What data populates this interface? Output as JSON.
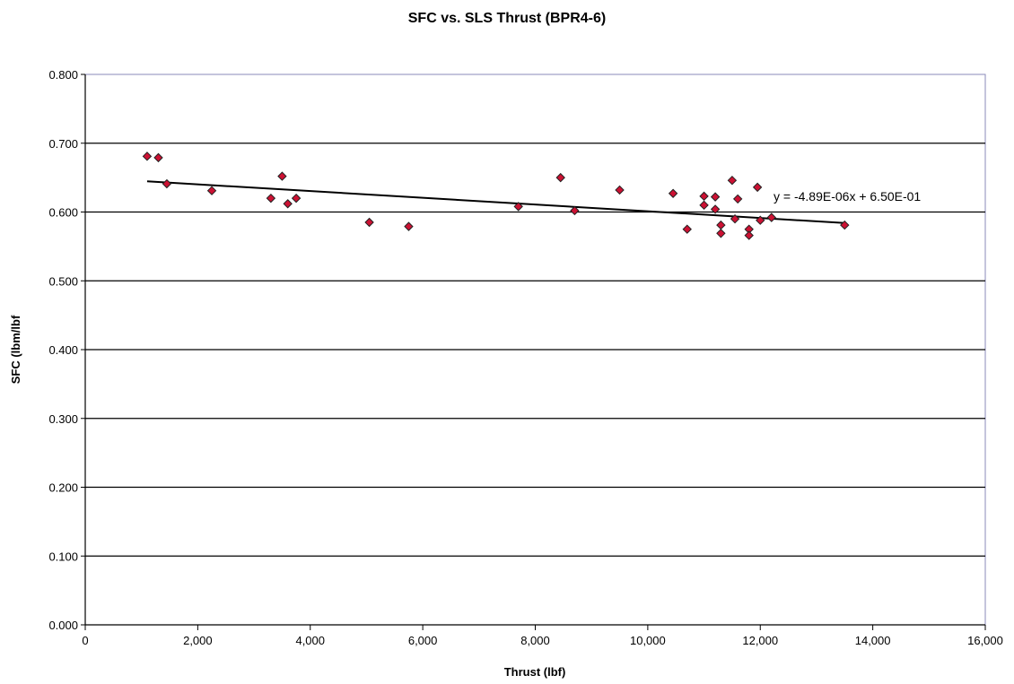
{
  "chart_data": {
    "type": "scatter",
    "title": "SFC vs. SLS Thrust (BPR4-6)",
    "xlabel": "Thrust (lbf)",
    "ylabel": "SFC (lbm/lbf",
    "xlim": [
      0,
      16000
    ],
    "ylim": [
      0,
      0.8
    ],
    "x_ticks": [
      "0",
      "2,000",
      "4,000",
      "6,000",
      "8,000",
      "10,000",
      "12,000",
      "14,000",
      "16,000"
    ],
    "y_ticks": [
      "0.000",
      "0.100",
      "0.200",
      "0.300",
      "0.400",
      "0.500",
      "0.600",
      "0.700",
      "0.800"
    ],
    "grid": "horizontal",
    "legend": "none",
    "marker_color": "#cc1133",
    "trendline": {
      "equation": "y = -4.89E-06x + 6.50E-01",
      "x_range": [
        1100,
        13500
      ]
    },
    "points": [
      {
        "x": 1100,
        "y": 0.681
      },
      {
        "x": 1300,
        "y": 0.679
      },
      {
        "x": 1450,
        "y": 0.641
      },
      {
        "x": 2250,
        "y": 0.631
      },
      {
        "x": 3300,
        "y": 0.62
      },
      {
        "x": 3500,
        "y": 0.652
      },
      {
        "x": 3600,
        "y": 0.612
      },
      {
        "x": 3750,
        "y": 0.62
      },
      {
        "x": 5050,
        "y": 0.585
      },
      {
        "x": 5750,
        "y": 0.579
      },
      {
        "x": 7700,
        "y": 0.608
      },
      {
        "x": 8450,
        "y": 0.65
      },
      {
        "x": 8700,
        "y": 0.602
      },
      {
        "x": 9500,
        "y": 0.632
      },
      {
        "x": 10450,
        "y": 0.627
      },
      {
        "x": 10700,
        "y": 0.575
      },
      {
        "x": 11000,
        "y": 0.623
      },
      {
        "x": 11000,
        "y": 0.61
      },
      {
        "x": 11200,
        "y": 0.622
      },
      {
        "x": 11200,
        "y": 0.604
      },
      {
        "x": 11300,
        "y": 0.581
      },
      {
        "x": 11300,
        "y": 0.569
      },
      {
        "x": 11500,
        "y": 0.646
      },
      {
        "x": 11550,
        "y": 0.59
      },
      {
        "x": 11600,
        "y": 0.619
      },
      {
        "x": 11800,
        "y": 0.575
      },
      {
        "x": 11800,
        "y": 0.566
      },
      {
        "x": 11950,
        "y": 0.636
      },
      {
        "x": 12000,
        "y": 0.588
      },
      {
        "x": 12200,
        "y": 0.592
      },
      {
        "x": 13500,
        "y": 0.581
      }
    ]
  }
}
